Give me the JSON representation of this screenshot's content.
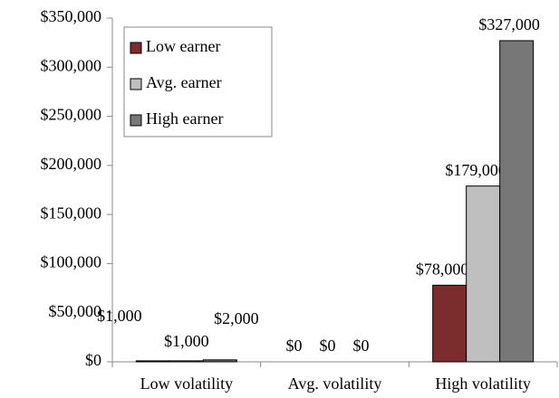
{
  "chart_data": {
    "type": "bar",
    "categories": [
      "Low volatility",
      "Avg. volatility",
      "High volatility"
    ],
    "series": [
      {
        "name": "Low earner",
        "color": "#7b2c2c",
        "values": [
          1000,
          0,
          78000
        ],
        "value_labels": [
          "$1,000",
          "$0",
          "$78,000"
        ]
      },
      {
        "name": "Avg. earner",
        "color": "#bfbfbf",
        "values": [
          1000,
          0,
          179000
        ],
        "value_labels": [
          "$1,000",
          "$0",
          "$179,000"
        ]
      },
      {
        "name": "High earner",
        "color": "#777777",
        "values": [
          2000,
          0,
          327000
        ],
        "value_labels": [
          "$2,000",
          "$0",
          "$327,000"
        ]
      }
    ],
    "ylim": [
      0,
      350000
    ],
    "yticks": [
      {
        "value": 0,
        "label": "$0"
      },
      {
        "value": 50000,
        "label": "$50,000"
      },
      {
        "value": 100000,
        "label": "$100,000"
      },
      {
        "value": 150000,
        "label": "$150,000"
      },
      {
        "value": 200000,
        "label": "$200,000"
      },
      {
        "value": 250000,
        "label": "$250,000"
      },
      {
        "value": 300000,
        "label": "$300,000"
      },
      {
        "value": 350000,
        "label": "$350,000"
      }
    ],
    "grid": false,
    "legend": "upper left"
  }
}
